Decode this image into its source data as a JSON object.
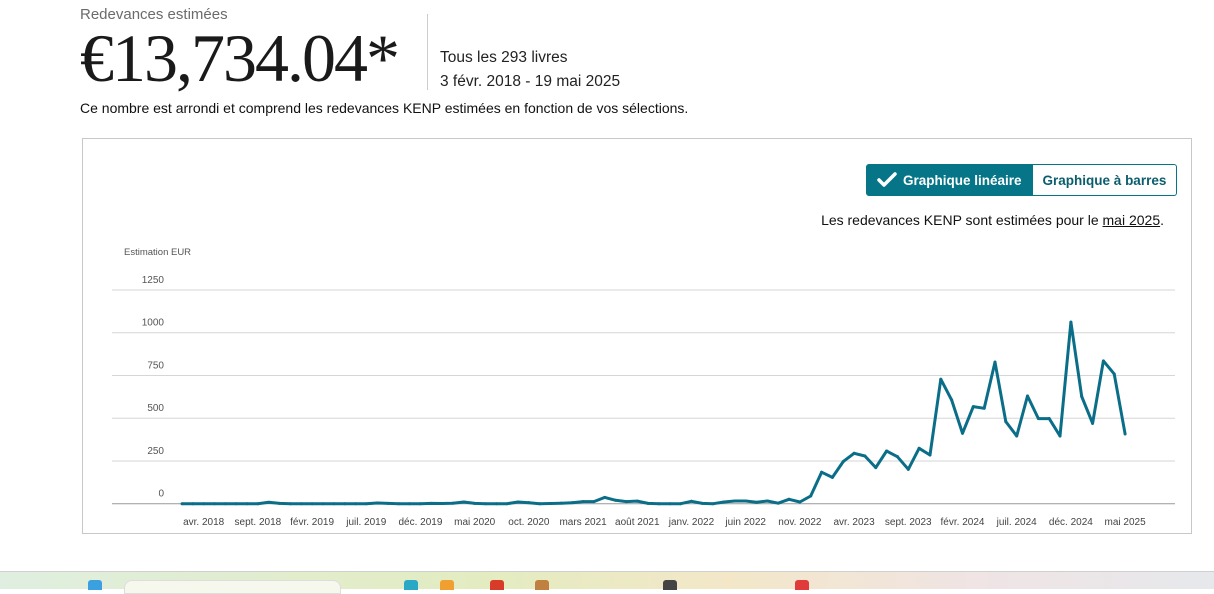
{
  "header": {
    "label": "Redevances estimées",
    "amount": "€13,734.04*",
    "books": "Tous les 293 livres",
    "date_range": "3 févr. 2018 - 19 mai 2025",
    "note": "Ce nombre est arrondi et comprend les redevances KENP estimées en fonction de vos sélections."
  },
  "toggle": {
    "line_label": "Graphique linéaire",
    "bar_label": "Graphique à barres",
    "selected": "line"
  },
  "kenp_note": {
    "prefix": "Les redevances KENP sont estimées pour le ",
    "link": "mai 2025",
    "suffix": "."
  },
  "colors": {
    "accent": "#067587",
    "line": "#0b6e88",
    "grid": "#d6d6d6"
  },
  "chart_data": {
    "type": "line",
    "ylabel": "Estimation EUR",
    "ylim": [
      0,
      1250
    ],
    "yticks": [
      0,
      250,
      500,
      750,
      1000,
      1250
    ],
    "grid": true,
    "x_start": "2018-02",
    "x_end": "2025-05",
    "xtick_labels": [
      "avr. 2018",
      "sept. 2018",
      "févr. 2019",
      "juil. 2019",
      "déc. 2019",
      "mai 2020",
      "oct. 2020",
      "mars 2021",
      "août 2021",
      "janv. 2022",
      "juin 2022",
      "nov. 2022",
      "avr. 2023",
      "sept. 2023",
      "févr. 2024",
      "juil. 2024",
      "déc. 2024",
      "mai 2025"
    ],
    "values": [
      0,
      0,
      0,
      0,
      0,
      0,
      0,
      0,
      8,
      2,
      0,
      0,
      0,
      0,
      0,
      0,
      0,
      0,
      4,
      2,
      0,
      0,
      0,
      2,
      1,
      3,
      10,
      2,
      0,
      0,
      0,
      10,
      6,
      0,
      1,
      3,
      6,
      12,
      12,
      37,
      20,
      12,
      15,
      2,
      0,
      0,
      0,
      14,
      2,
      0,
      10,
      16,
      16,
      8,
      16,
      3,
      26,
      10,
      45,
      184,
      154,
      246,
      295,
      279,
      211,
      308,
      275,
      201,
      324,
      285,
      728,
      607,
      412,
      568,
      558,
      828,
      480,
      396,
      630,
      498,
      498,
      396,
      1062,
      627,
      470,
      835,
      759,
      408
    ]
  }
}
